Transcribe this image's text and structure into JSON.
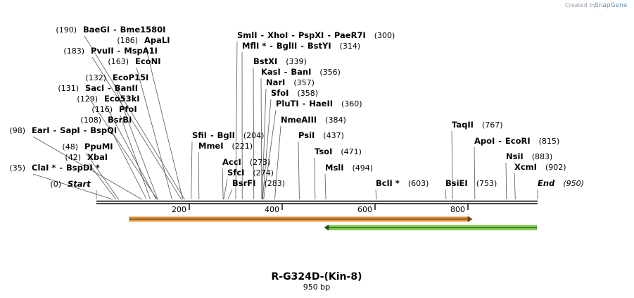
{
  "credit": {
    "prefix": "Created by",
    "brand": "SnapGene"
  },
  "title": "R-G324D-(Kin-8)",
  "subtitle": "950 bp",
  "sequence_length": 950,
  "ticks": [
    "200",
    "400",
    "600",
    "800"
  ],
  "tick_values": [
    200,
    400,
    600,
    800
  ],
  "colors": {
    "feature1_fill": "#f0a040",
    "feature1_stroke": "#b8782a",
    "feature2_fill": "#7fd24a",
    "feature2_stroke": "#5aa830"
  },
  "features": [
    {
      "name": "orange feature",
      "start": 71,
      "end": 810,
      "direction": "forward"
    },
    {
      "name": "green feature",
      "start": 490,
      "end": 948,
      "direction": "reverse"
    }
  ],
  "sites": [
    {
      "pos": 190,
      "pos_label": "(190)",
      "names": [
        "BaeGI",
        "Bme1580I"
      ],
      "label_side": "right"
    },
    {
      "pos": 186,
      "pos_label": "(186)",
      "names": [
        "ApaLI"
      ],
      "label_side": "right"
    },
    {
      "pos": 183,
      "pos_label": "(183)",
      "names": [
        "PvuII",
        "MspA1I"
      ],
      "label_side": "right"
    },
    {
      "pos": 163,
      "pos_label": "(163)",
      "names": [
        "EcoNI"
      ],
      "label_side": "right"
    },
    {
      "pos": 132,
      "pos_label": "(132)",
      "names": [
        "EcoP15I"
      ],
      "label_side": "right"
    },
    {
      "pos": 131,
      "pos_label": "(131)",
      "names": [
        "SacI",
        "BanII"
      ],
      "label_side": "right"
    },
    {
      "pos": 129,
      "pos_label": "(129)",
      "names": [
        "Eco53kI"
      ],
      "label_side": "right"
    },
    {
      "pos": 116,
      "pos_label": "(116)",
      "names": [
        "PfoI"
      ],
      "label_side": "right"
    },
    {
      "pos": 108,
      "pos_label": "(108)",
      "names": [
        "BsrBI"
      ],
      "label_side": "right"
    },
    {
      "pos": 98,
      "pos_label": "(98)",
      "names": [
        "EarI",
        "SapI",
        "BspQI"
      ],
      "label_side": "right"
    },
    {
      "pos": 48,
      "pos_label": "(48)",
      "names": [
        "PpuMI"
      ],
      "label_side": "right"
    },
    {
      "pos": 42,
      "pos_label": "(42)",
      "names": [
        "XbaI"
      ],
      "label_side": "right"
    },
    {
      "pos": 35,
      "pos_label": "(35)",
      "names": [
        "ClaI *",
        "BspDI *"
      ],
      "label_side": "right"
    },
    {
      "pos": 0,
      "pos_label": "(0)",
      "names": [
        "Start"
      ],
      "label_side": "right",
      "italic": true
    },
    {
      "pos": 204,
      "pos_label": "(204)",
      "names": [
        "SfiI",
        "BglI"
      ],
      "label_side": "left"
    },
    {
      "pos": 221,
      "pos_label": "(221)",
      "names": [
        "MmeI"
      ],
      "label_side": "left"
    },
    {
      "pos": 273,
      "pos_label": "(273)",
      "names": [
        "AccI"
      ],
      "label_side": "left"
    },
    {
      "pos": 274,
      "pos_label": "(274)",
      "names": [
        "SfcI"
      ],
      "label_side": "left"
    },
    {
      "pos": 283,
      "pos_label": "(283)",
      "names": [
        "BsrFI"
      ],
      "label_side": "left"
    },
    {
      "pos": 300,
      "pos_label": "(300)",
      "names": [
        "SmlI",
        "XhoI",
        "PspXI",
        "PaeR7I"
      ],
      "label_side": "left"
    },
    {
      "pos": 314,
      "pos_label": "(314)",
      "names": [
        "MflI *",
        "BglII",
        "BstYI"
      ],
      "label_side": "left"
    },
    {
      "pos": 339,
      "pos_label": "(339)",
      "names": [
        "BstXI"
      ],
      "label_side": "left"
    },
    {
      "pos": 356,
      "pos_label": "(356)",
      "names": [
        "KasI",
        "BanI"
      ],
      "label_side": "left"
    },
    {
      "pos": 357,
      "pos_label": "(357)",
      "names": [
        "NarI"
      ],
      "label_side": "left"
    },
    {
      "pos": 358,
      "pos_label": "(358)",
      "names": [
        "SfoI"
      ],
      "label_side": "left"
    },
    {
      "pos": 360,
      "pos_label": "(360)",
      "names": [
        "PluTI",
        "HaeII"
      ],
      "label_side": "left"
    },
    {
      "pos": 384,
      "pos_label": "(384)",
      "names": [
        "NmeAIII"
      ],
      "label_side": "left"
    },
    {
      "pos": 437,
      "pos_label": "(437)",
      "names": [
        "PsiI"
      ],
      "label_side": "left"
    },
    {
      "pos": 471,
      "pos_label": "(471)",
      "names": [
        "TsoI"
      ],
      "label_side": "left"
    },
    {
      "pos": 494,
      "pos_label": "(494)",
      "names": [
        "MslI"
      ],
      "label_side": "left"
    },
    {
      "pos": 603,
      "pos_label": "(603)",
      "names": [
        "BclI *"
      ],
      "label_side": "left"
    },
    {
      "pos": 753,
      "pos_label": "(753)",
      "names": [
        "BsiEI"
      ],
      "label_side": "left"
    },
    {
      "pos": 767,
      "pos_label": "(767)",
      "names": [
        "TaqII"
      ],
      "label_side": "left"
    },
    {
      "pos": 815,
      "pos_label": "(815)",
      "names": [
        "ApoI",
        "EcoRI"
      ],
      "label_side": "left"
    },
    {
      "pos": 883,
      "pos_label": "(883)",
      "names": [
        "NsiI"
      ],
      "label_side": "left"
    },
    {
      "pos": 902,
      "pos_label": "(902)",
      "names": [
        "XcmI"
      ],
      "label_side": "left"
    },
    {
      "pos": 950,
      "pos_label": "(950)",
      "names": [
        "End"
      ],
      "label_side": "left",
      "italic": true
    }
  ]
}
